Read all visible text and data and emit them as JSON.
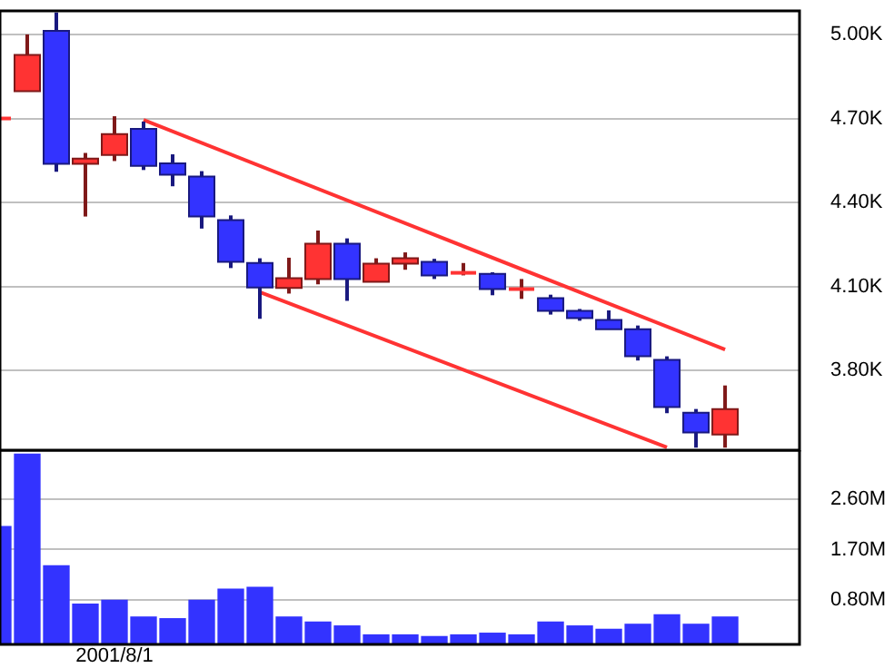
{
  "chart_data": [
    {
      "type": "candlestick",
      "categories": [
        null,
        null,
        null,
        null,
        null,
        null,
        null,
        null,
        null,
        null,
        null,
        null,
        null,
        null,
        null,
        null,
        null,
        null,
        null,
        null,
        null,
        null,
        null,
        null,
        null,
        null
      ],
      "ohlc": [
        [
          4700,
          4700,
          4700,
          4700
        ],
        [
          4797,
          5000,
          4797,
          4927
        ],
        [
          5013,
          5078,
          4510,
          4538
        ],
        [
          4538,
          4577,
          4350,
          4557
        ],
        [
          4570,
          4708,
          4548,
          4644
        ],
        [
          4663,
          4689,
          4516,
          4531
        ],
        [
          4540,
          4572,
          4458,
          4499
        ],
        [
          4493,
          4512,
          4307,
          4350
        ],
        [
          4337,
          4354,
          4166,
          4188
        ],
        [
          4184,
          4201,
          3985,
          4097
        ],
        [
          4095,
          4203,
          4075,
          4130
        ],
        [
          4127,
          4300,
          4108,
          4253
        ],
        [
          4253,
          4272,
          4049,
          4127
        ],
        [
          4117,
          4201,
          4117,
          4182
        ],
        [
          4182,
          4222,
          4160,
          4201
        ],
        [
          4188,
          4199,
          4127,
          4140
        ],
        [
          4140,
          4184,
          4140,
          4149
        ],
        [
          4145,
          4151,
          4069,
          4091
        ],
        [
          4091,
          4127,
          4056,
          4091
        ],
        [
          4059,
          4071,
          4000,
          4013
        ],
        [
          4013,
          4020,
          3978,
          3987
        ],
        [
          3981,
          4015,
          3948,
          3948
        ],
        [
          3948,
          3961,
          3836,
          3851
        ],
        [
          3838,
          3851,
          3648,
          3670
        ],
        [
          3650,
          3663,
          3525,
          3579
        ],
        [
          3572,
          3747,
          3525,
          3663
        ]
      ],
      "colors": [
        "#ff3333",
        "#ff3333",
        "#3333ff",
        "#ff3333",
        "#ff3333",
        "#3333ff",
        "#3333ff",
        "#3333ff",
        "#3333ff",
        "#3333ff",
        "#ff3333",
        "#ff3333",
        "#3333ff",
        "#ff3333",
        "#ff3333",
        "#3333ff",
        "#ff3333",
        "#3333ff",
        "#ff3333",
        "#3333ff",
        "#3333ff",
        "#3333ff",
        "#3333ff",
        "#3333ff",
        "#3333ff",
        "#ff3333"
      ],
      "series": [
        {
          "type": "line",
          "color": "#ff3333",
          "values": [
            null,
            null,
            null,
            null,
            null,
            4695,
            null,
            null,
            null,
            null,
            null,
            null,
            null,
            null,
            null,
            null,
            null,
            null,
            null,
            null,
            null,
            null,
            null,
            null,
            null,
            3875
          ]
        },
        {
          "type": "line",
          "color": "#ff3333",
          "values": [
            null,
            null,
            null,
            null,
            null,
            null,
            null,
            null,
            null,
            4080,
            null,
            null,
            null,
            null,
            null,
            null,
            null,
            null,
            null,
            null,
            null,
            null,
            null,
            3526,
            null,
            null
          ]
        }
      ],
      "ylim": [
        3516,
        5084
      ],
      "yticks": [
        {
          "value": 3800,
          "label": "3.80K"
        },
        {
          "value": 4100,
          "label": "4.10K"
        },
        {
          "value": 4400,
          "label": "4.40K"
        },
        {
          "value": 4700,
          "label": "4.70K"
        },
        {
          "value": 5000,
          "label": "5.00K"
        }
      ],
      "grid": "y",
      "tick_labels": "y"
    },
    {
      "type": "bar",
      "categories": [
        null,
        null,
        null,
        null,
        "2001/8/1",
        null,
        null,
        null,
        null,
        null,
        null,
        null,
        null,
        null,
        null,
        null,
        null,
        null,
        null,
        null,
        null,
        null,
        null,
        null,
        null,
        null
      ],
      "values": [
        2110000,
        3410000,
        1410000,
        720000,
        790000,
        490000,
        460000,
        790000,
        990000,
        1020000,
        490000,
        400000,
        330000,
        170000,
        170000,
        140000,
        170000,
        200000,
        170000,
        400000,
        330000,
        270000,
        360000,
        530000,
        360000,
        490000
      ],
      "color": "#3333ff",
      "ylim": [
        0,
        3480000
      ],
      "yticks": [
        {
          "value": 800000,
          "label": "0.80M"
        },
        {
          "value": 1700000,
          "label": "1.70M"
        },
        {
          "value": 2600000,
          "label": "2.60M"
        }
      ],
      "grid": true
    }
  ]
}
